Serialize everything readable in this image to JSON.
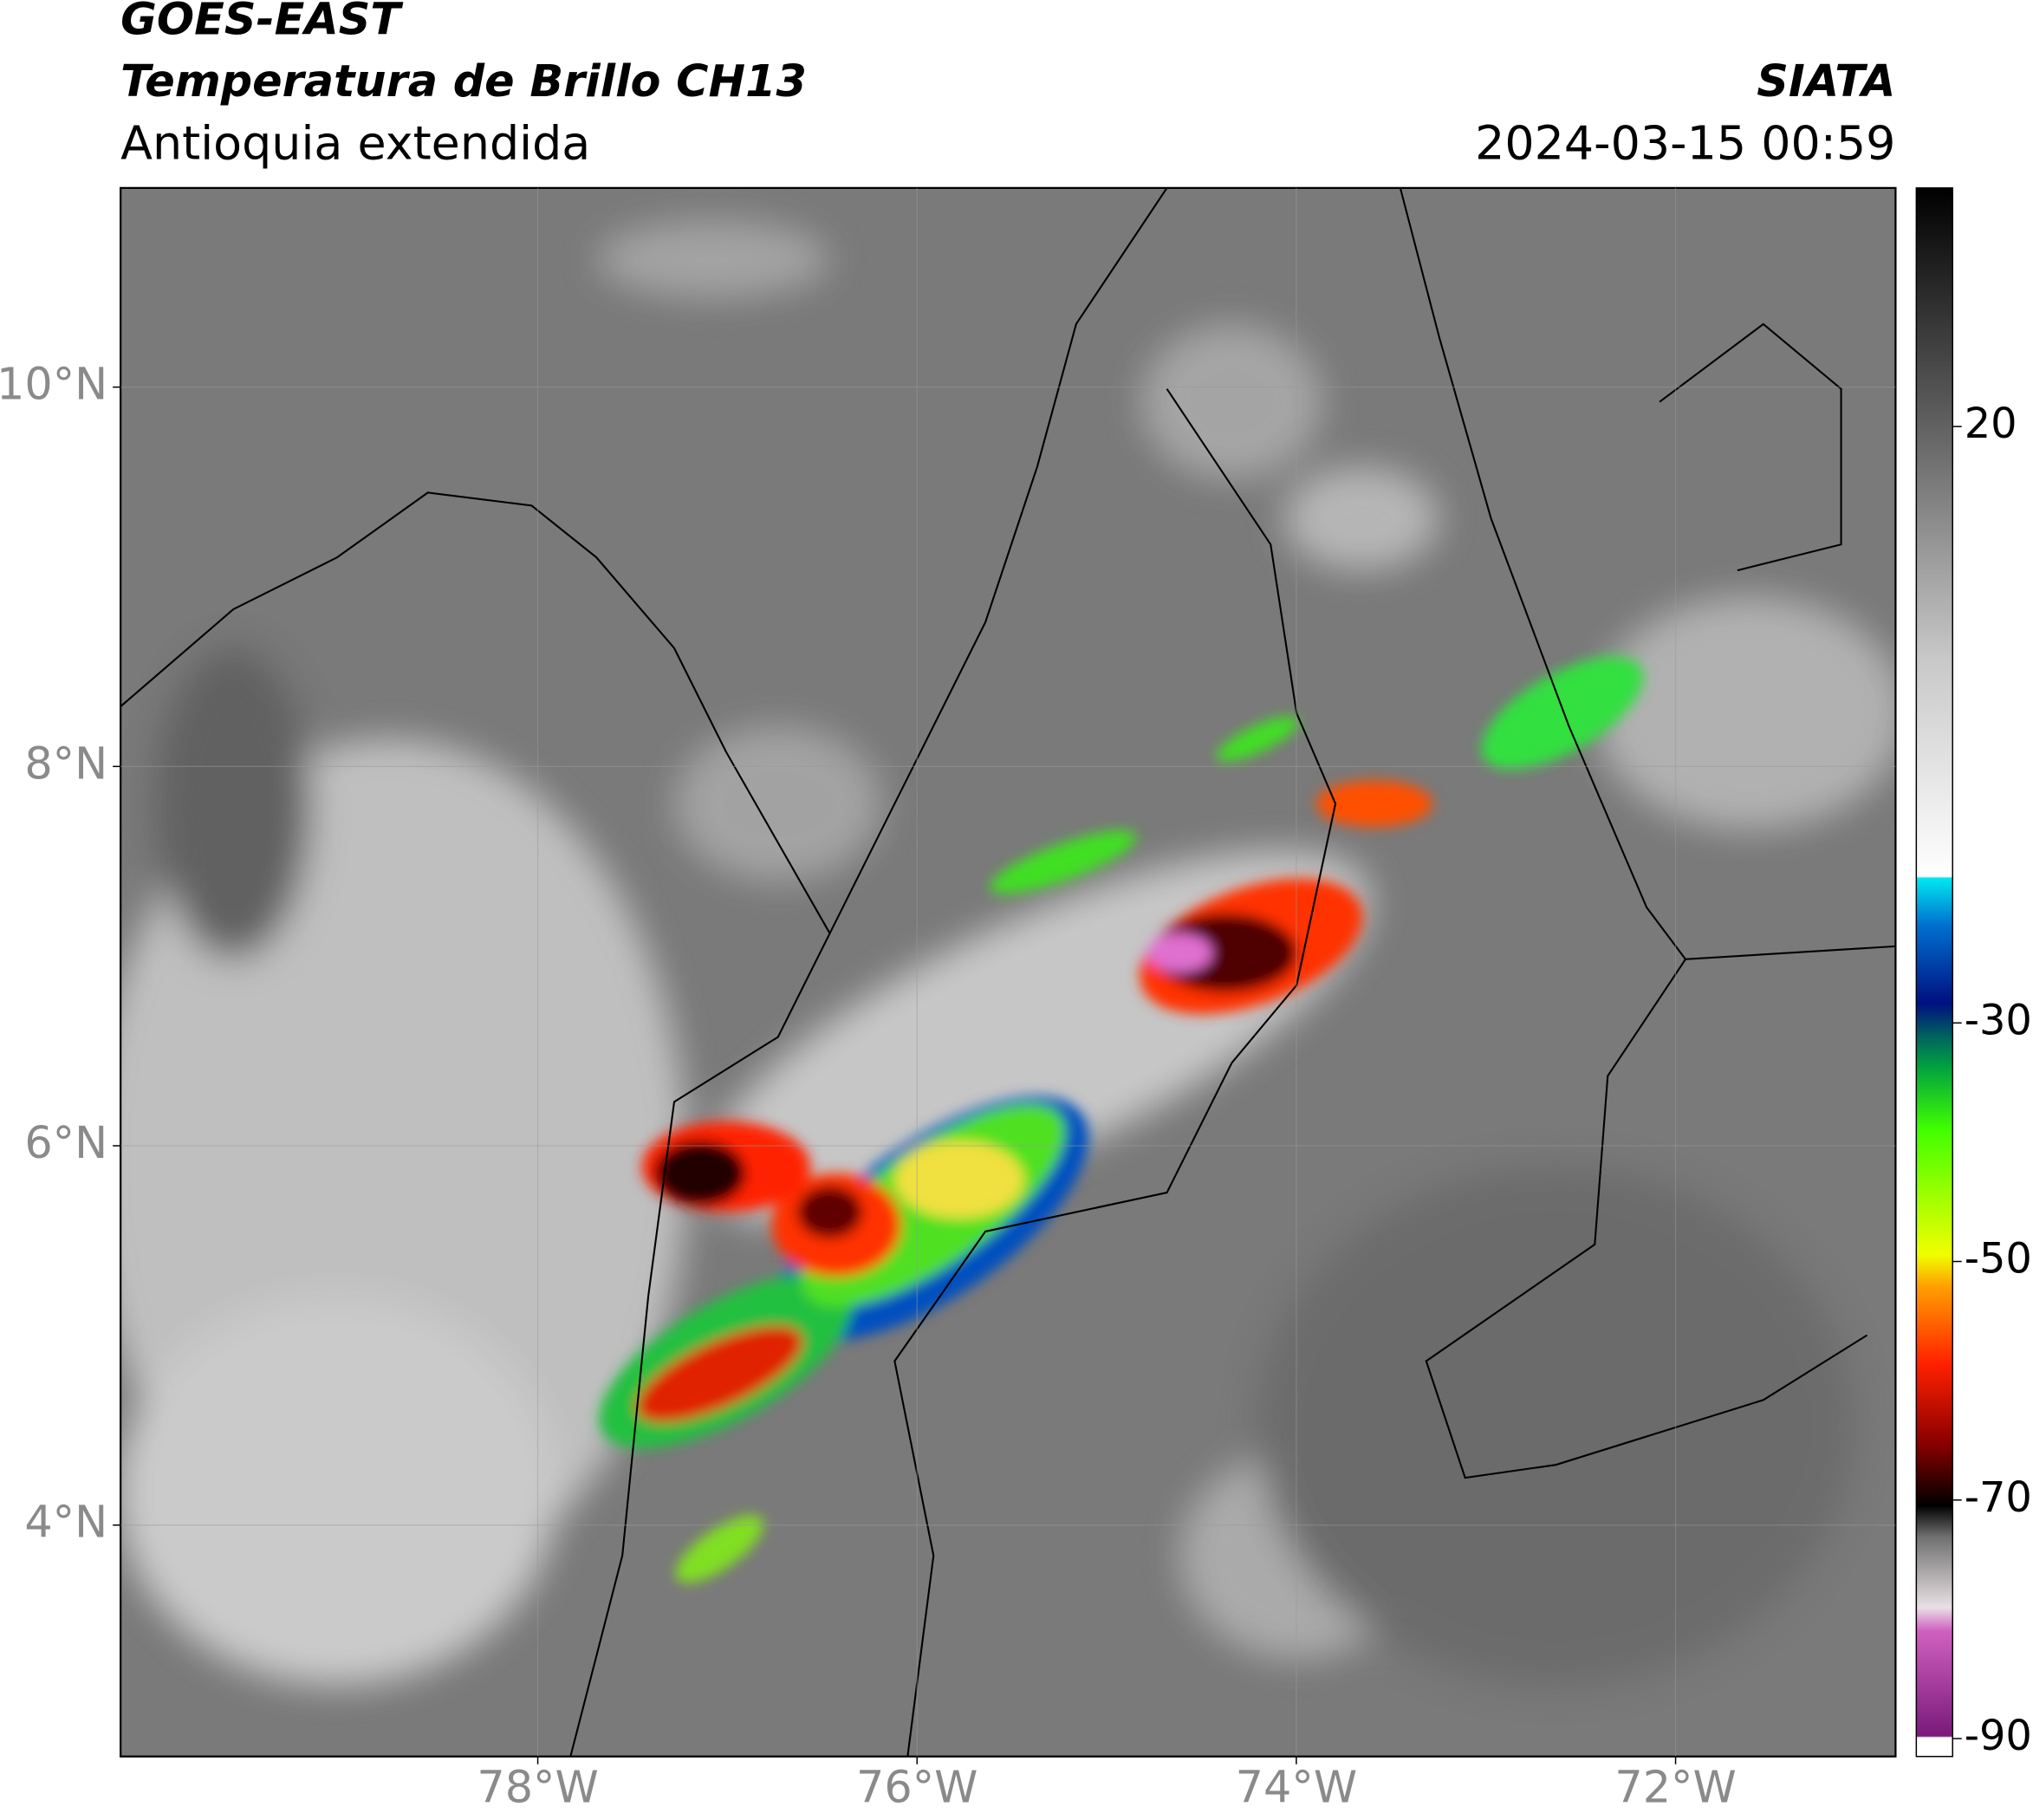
{
  "header": {
    "satellite": "GOES-EAST",
    "product": "Temperatura de Brillo CH13",
    "region": "Antioquia extendida",
    "organization": "SIATA",
    "datetime": "2024-03-15 00:59"
  },
  "map": {
    "xlim": [
      -80.2,
      -70.84
    ],
    "ylim": [
      2.78,
      11.05
    ],
    "xticks": [
      {
        "value": -78,
        "label": "78°W"
      },
      {
        "value": -76,
        "label": "76°W"
      },
      {
        "value": -74,
        "label": "74°W"
      },
      {
        "value": -72,
        "label": "72°W"
      }
    ],
    "yticks": [
      {
        "value": 4,
        "label": "4°N"
      },
      {
        "value": 6,
        "label": "6°N"
      },
      {
        "value": 8,
        "label": "8°N"
      },
      {
        "value": 10,
        "label": "10°N"
      }
    ]
  },
  "colorbar": {
    "lim": [
      -91.5,
      40
    ],
    "ticks": [
      20,
      -30,
      -50,
      -70,
      -90
    ]
  }
}
